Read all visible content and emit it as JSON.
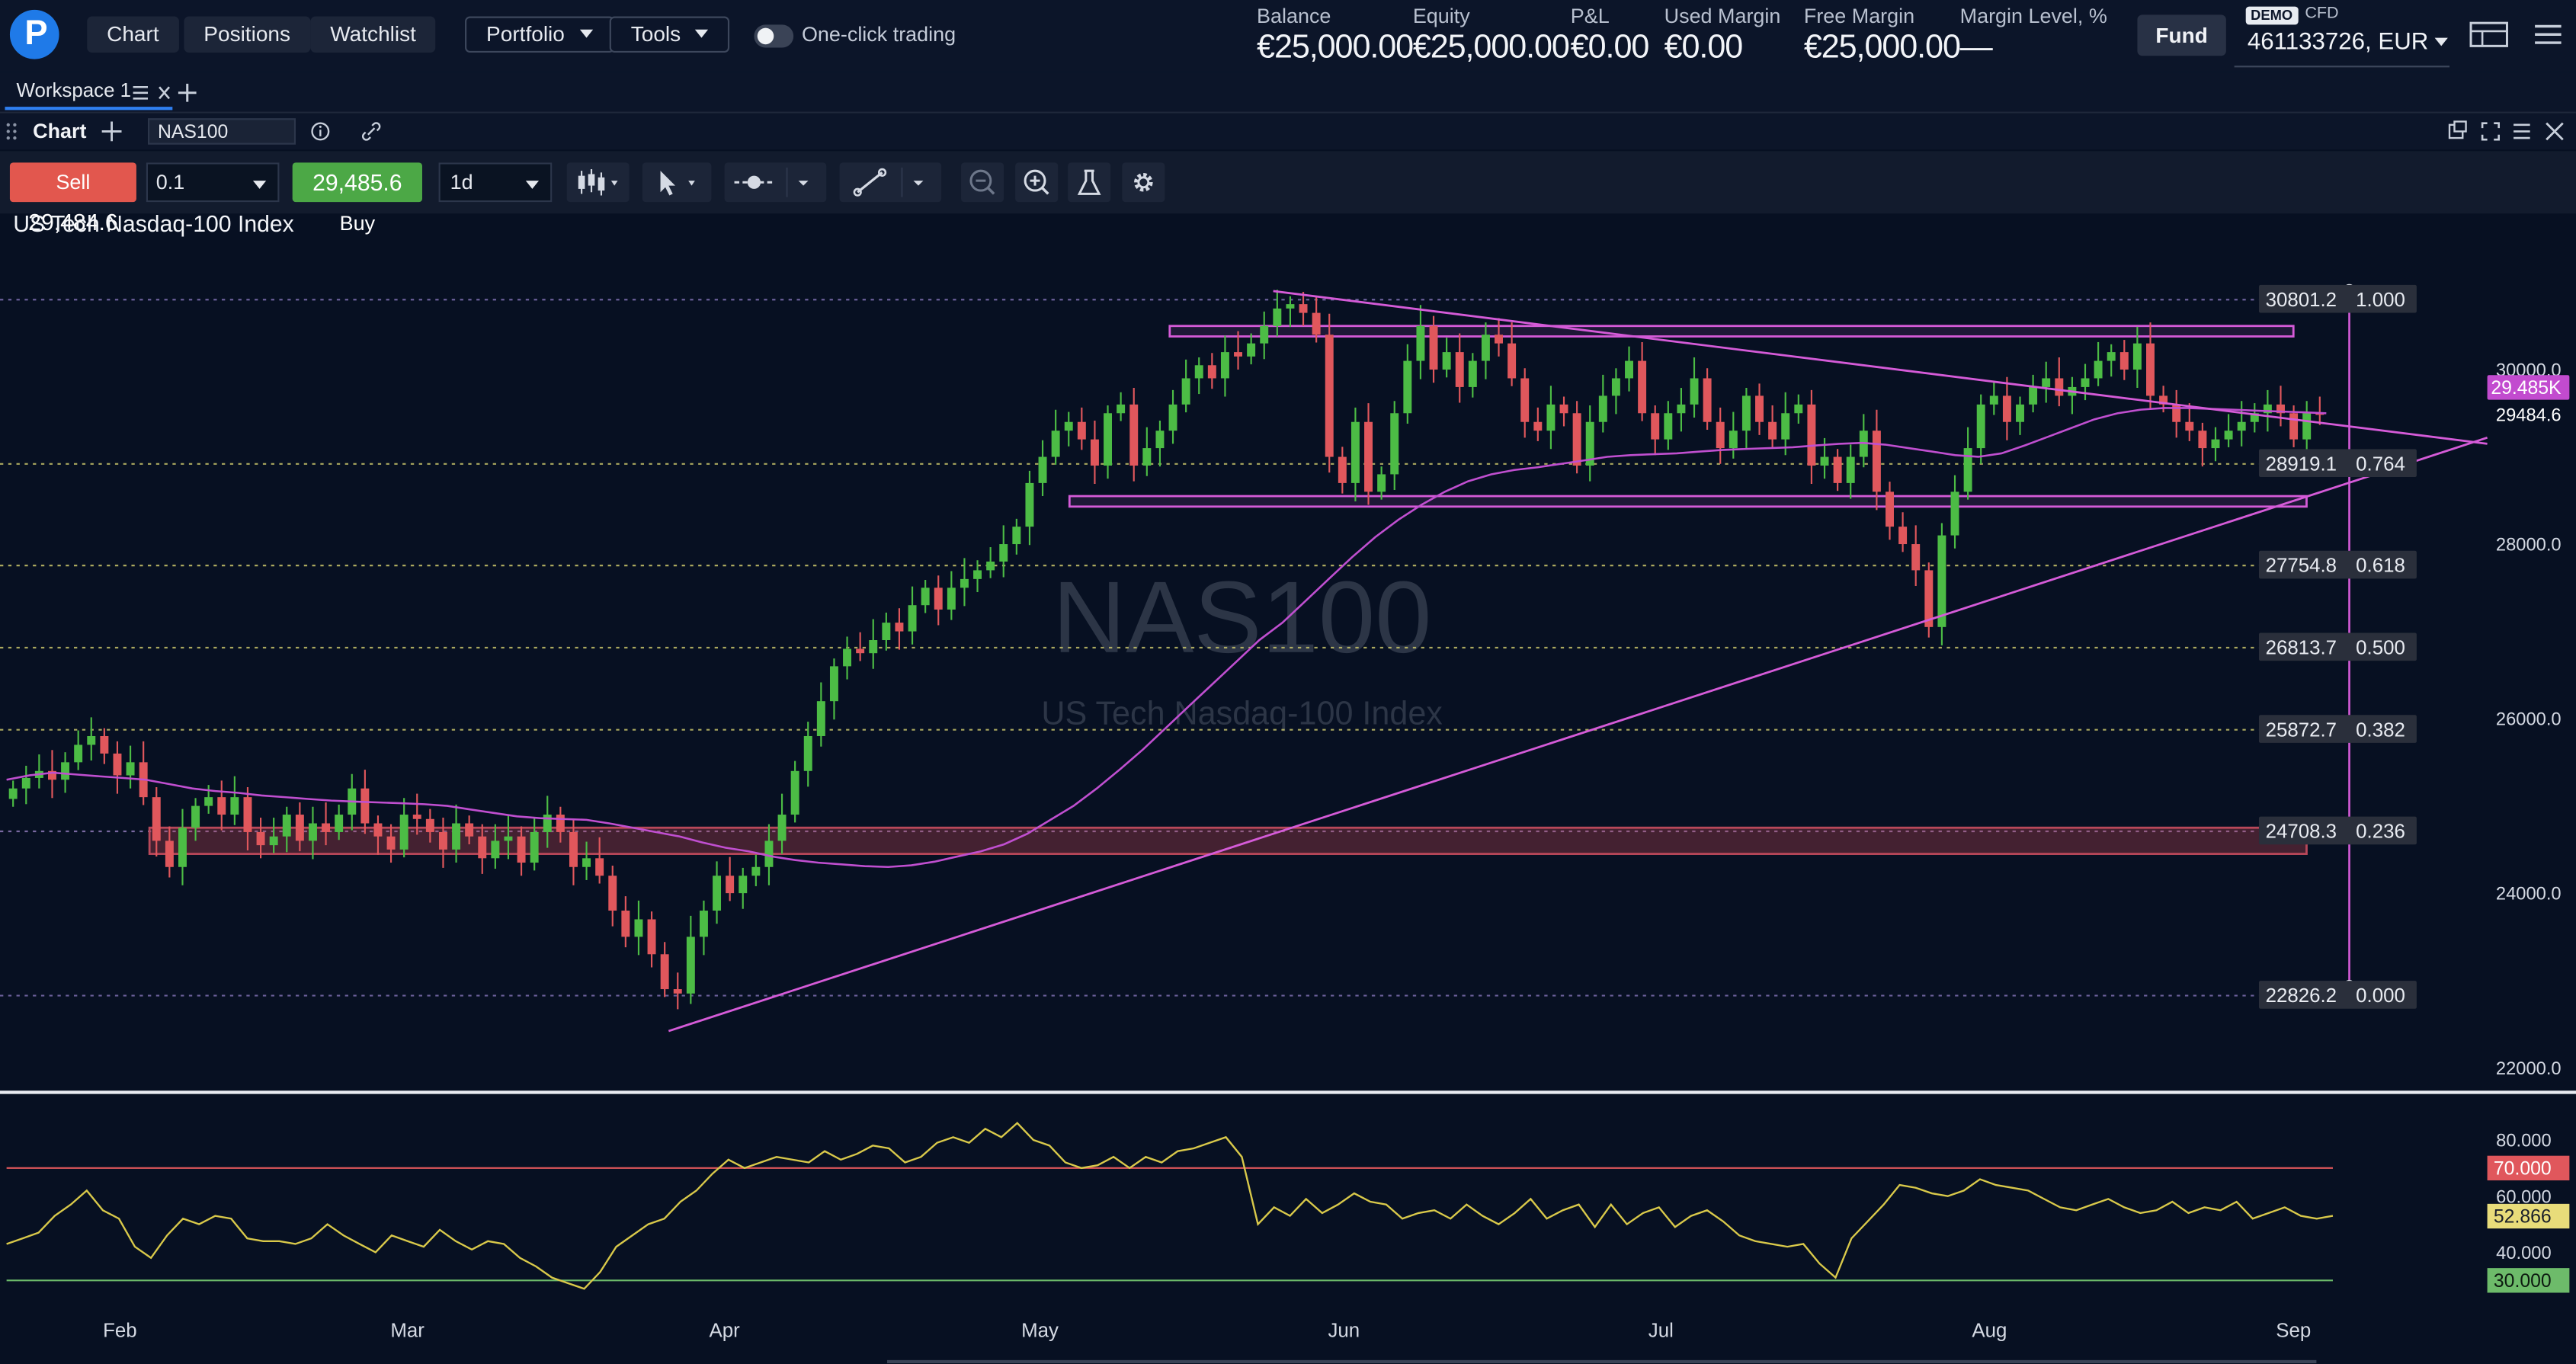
{
  "header": {
    "nav": [
      "Chart",
      "Positions",
      "Watchlist"
    ],
    "portfolio_label": "Portfolio",
    "tools_label": "Tools",
    "one_click_label": "One-click trading",
    "stats": [
      {
        "label": "Balance",
        "value": "€25,000.00"
      },
      {
        "label": "Equity",
        "value": "€25,000.00"
      },
      {
        "label": "P&L",
        "value": "€0.00"
      },
      {
        "label": "Used Margin",
        "value": "€0.00"
      },
      {
        "label": "Free Margin",
        "value": "€25,000.00"
      },
      {
        "label": "Margin Level, %",
        "value": "—"
      }
    ],
    "fund_label": "Fund",
    "demo_badge": "DEMO",
    "account_type": "CFD",
    "account": "461133726, EUR"
  },
  "workspace": {
    "tab_label": "Workspace 1"
  },
  "chart_panel": {
    "title": "Chart",
    "symbol": "NAS100"
  },
  "toolbar": {
    "sell_label": "Sell",
    "sell_price": "29,484.6",
    "quantity": "0.1",
    "buy_price": "29,485.6",
    "buy_label": "Buy",
    "timeframe": "1d"
  },
  "instrument": {
    "title": "US Tech Nasdaq-100 Index",
    "watermark_symbol": "NAS100",
    "watermark_name": "US Tech Nasdaq-100 Index"
  },
  "colors": {
    "bull": "#4cbc45",
    "bear": "#e0575c",
    "ma": "#c04fd0",
    "drawing": "#d55bd8",
    "rsi": "#d9c94a",
    "background": "#071022"
  },
  "chart_data": [
    {
      "type": "candlestick",
      "title": "US Tech Nasdaq-100 Index",
      "symbol": "NAS100",
      "timeframe": "1d",
      "x_tick_labels": [
        "Feb",
        "Mar",
        "Apr",
        "May",
        "Jun",
        "Jul",
        "Aug",
        "Sep"
      ],
      "y_tick_labels": [
        "30000.0",
        "28000.0",
        "26000.0",
        "24000.0",
        "22000.0"
      ],
      "ylim": [
        21700,
        31500
      ],
      "current_price": "29484.6",
      "current_price_badge": "29.485K",
      "close_series": [
        25200,
        25320,
        25400,
        25300,
        25500,
        25700,
        25800,
        25600,
        25350,
        25500,
        25100,
        24600,
        24300,
        24750,
        25000,
        25100,
        24900,
        25100,
        24700,
        24550,
        24650,
        24900,
        24600,
        24800,
        24700,
        24900,
        25200,
        24800,
        24650,
        24500,
        24900,
        24850,
        24700,
        24500,
        24800,
        24650,
        24400,
        24600,
        24650,
        24350,
        24700,
        24900,
        24700,
        24300,
        24400,
        24200,
        23800,
        23500,
        23700,
        23300,
        22900,
        22850,
        23500,
        23800,
        24200,
        24000,
        24200,
        24300,
        24600,
        24900,
        25400,
        25800,
        26200,
        26600,
        26800,
        26750,
        26900,
        27100,
        27000,
        27300,
        27500,
        27250,
        27500,
        27600,
        27700,
        27800,
        28000,
        28200,
        28700,
        29000,
        29300,
        29400,
        29200,
        28900,
        29500,
        29600,
        28900,
        29100,
        29300,
        29600,
        29900,
        30050,
        29900,
        30200,
        30150,
        30300,
        30500,
        30700,
        30750,
        30650,
        30400,
        29000,
        28700,
        29400,
        28600,
        28800,
        29500,
        30100,
        30500,
        30000,
        30200,
        29800,
        30100,
        30400,
        30300,
        29900,
        29400,
        29300,
        29600,
        29500,
        28900,
        29400,
        29700,
        29900,
        30100,
        29500,
        29200,
        29500,
        29600,
        29900,
        29400,
        29100,
        29300,
        29700,
        29400,
        29200,
        29500,
        29600,
        28900,
        29000,
        28700,
        29000,
        29300,
        28600,
        28200,
        28000,
        27700,
        27050,
        28100,
        28600,
        29100,
        29600,
        29700,
        29400,
        29600,
        29800,
        29900,
        29700,
        29800,
        29900,
        30100,
        30200,
        30000,
        30300,
        29700,
        29600,
        29400,
        29300,
        29100,
        29200,
        29300,
        29400,
        29500,
        29600,
        29500,
        29200,
        29500,
        29485
      ],
      "moving_average_series": [
        25300,
        25350,
        25380,
        25360,
        25340,
        25320,
        25300,
        25250,
        25200,
        25170,
        25150,
        25120,
        25100,
        25080,
        25060,
        25050,
        25040,
        25030,
        25020,
        25000,
        24960,
        24920,
        24880,
        24860,
        24850,
        24840,
        24800,
        24750,
        24700,
        24650,
        24580,
        24520,
        24480,
        24420,
        24380,
        24350,
        24330,
        24310,
        24300,
        24320,
        24360,
        24420,
        24480,
        24560,
        24680,
        24840,
        25000,
        25200,
        25420,
        25650,
        25900,
        26150,
        26400,
        26650,
        26900,
        27100,
        27350,
        27600,
        27850,
        28080,
        28280,
        28450,
        28600,
        28720,
        28800,
        28850,
        28880,
        28920,
        28960,
        29000,
        29020,
        29030,
        29040,
        29060,
        29080,
        29090,
        29100,
        29110,
        29130,
        29150,
        29160,
        29140,
        29100,
        29060,
        29020,
        29000,
        29040,
        29130,
        29230,
        29330,
        29430,
        29500,
        29540,
        29560,
        29560,
        29550,
        29540,
        29530,
        29520,
        29510,
        29500
      ],
      "horizontal_zones": [
        {
          "kind": "resistance",
          "upper": 30500,
          "lower": 30380
        },
        {
          "kind": "support",
          "upper": 28550,
          "lower": 28430
        },
        {
          "kind": "demand",
          "upper": 24750,
          "lower": 24450
        }
      ],
      "trendlines": [
        {
          "kind": "descending",
          "from": {
            "month": "May",
            "price": 30900
          },
          "to": {
            "month": "Sep",
            "price": 29150
          }
        },
        {
          "kind": "ascending",
          "from": {
            "month": "Apr",
            "price": 22420
          },
          "to": {
            "month": "Sep",
            "price": 29220
          }
        }
      ],
      "fibonacci_levels": [
        {
          "price": "30801.2",
          "ratio": "1.000"
        },
        {
          "price": "28919.1",
          "ratio": "0.764"
        },
        {
          "price": "27754.8",
          "ratio": "0.618"
        },
        {
          "price": "26813.7",
          "ratio": "0.500"
        },
        {
          "price": "25872.7",
          "ratio": "0.382"
        },
        {
          "price": "24708.3",
          "ratio": "0.236"
        },
        {
          "price": "22826.2",
          "ratio": "0.000"
        }
      ]
    },
    {
      "type": "line",
      "title": "",
      "indicator": "RSI",
      "y_tick_labels": [
        "80.000",
        "60.000",
        "40.000"
      ],
      "ylim": [
        24,
        88
      ],
      "overbought": "70.000",
      "oversold": "30.000",
      "current_value": "52.866",
      "values": [
        43,
        45,
        47,
        53,
        57,
        62,
        55,
        52,
        42,
        38,
        46,
        52,
        50,
        53,
        52,
        45,
        44,
        44,
        43,
        45,
        50,
        46,
        43,
        40,
        46,
        44,
        42,
        48,
        44,
        41,
        44,
        43,
        38,
        35,
        31,
        29,
        27,
        33,
        42,
        46,
        50,
        52,
        58,
        62,
        68,
        73,
        70,
        72,
        74,
        73,
        72,
        76,
        73,
        75,
        78,
        77,
        72,
        74,
        79,
        81,
        79,
        84,
        81,
        86,
        80,
        78,
        72,
        70,
        71,
        74,
        70,
        74,
        72,
        76,
        77,
        79,
        81,
        74,
        50,
        56,
        53,
        59,
        54,
        57,
        61,
        58,
        57,
        52,
        54,
        55,
        52,
        57,
        53,
        50,
        54,
        59,
        52,
        55,
        57,
        49,
        57,
        50,
        54,
        56,
        49,
        53,
        55,
        51,
        46,
        44,
        43,
        42,
        43,
        36,
        31,
        45,
        51,
        57,
        64,
        63,
        61,
        60,
        62,
        66,
        64,
        63,
        62,
        59,
        56,
        55,
        57,
        59,
        56,
        54,
        55,
        58,
        54,
        56,
        55,
        58,
        52,
        54,
        56,
        53,
        52,
        53
      ]
    }
  ]
}
